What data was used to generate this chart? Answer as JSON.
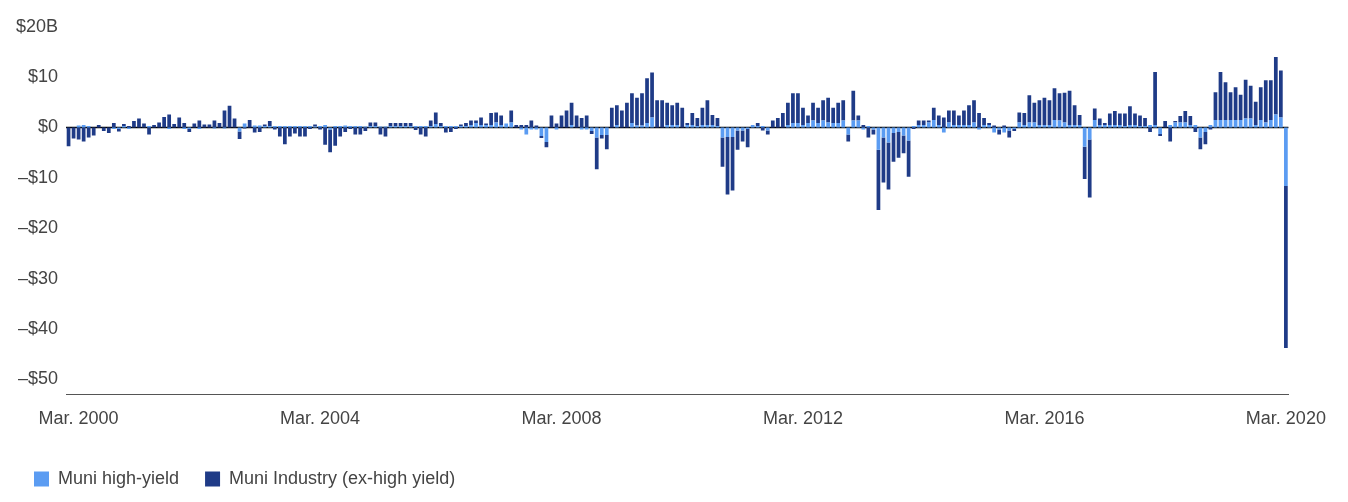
{
  "chart_data": {
    "type": "bar",
    "stacked": true,
    "grid": false,
    "legend": "bottom left",
    "ylim": [
      -53,
      20
    ],
    "yticks": [
      {
        "value": -50,
        "label": "–$50"
      },
      {
        "value": -40,
        "label": "–$40"
      },
      {
        "value": -30,
        "label": "–$30"
      },
      {
        "value": -20,
        "label": "–$20"
      },
      {
        "value": -10,
        "label": "–$10"
      },
      {
        "value": 0,
        "label": "$0"
      },
      {
        "value": 10,
        "label": "$10"
      },
      {
        "value": 20,
        "label": "$20B"
      }
    ],
    "ref_lines": [
      {
        "axis": "y",
        "value": 0,
        "color": "#000000"
      }
    ],
    "categories": [
      null,
      null,
      "Mar. 2000",
      null,
      null,
      null,
      null,
      null,
      null,
      null,
      null,
      null,
      null,
      null,
      null,
      null,
      null,
      null,
      null,
      null,
      null,
      null,
      null,
      null,
      null,
      null,
      null,
      null,
      null,
      null,
      null,
      null,
      null,
      null,
      null,
      null,
      null,
      null,
      null,
      null,
      null,
      null,
      null,
      null,
      null,
      null,
      null,
      null,
      null,
      null,
      "Mar. 2004",
      null,
      null,
      null,
      null,
      null,
      null,
      null,
      null,
      null,
      null,
      null,
      null,
      null,
      null,
      null,
      null,
      null,
      null,
      null,
      null,
      null,
      null,
      null,
      null,
      null,
      null,
      null,
      null,
      null,
      null,
      null,
      null,
      null,
      null,
      null,
      null,
      null,
      null,
      null,
      null,
      null,
      null,
      null,
      null,
      null,
      null,
      null,
      "Mar. 2008",
      null,
      null,
      null,
      null,
      null,
      null,
      null,
      null,
      null,
      null,
      null,
      null,
      null,
      null,
      null,
      null,
      null,
      null,
      null,
      null,
      null,
      null,
      null,
      null,
      null,
      null,
      null,
      null,
      null,
      null,
      null,
      null,
      null,
      null,
      null,
      null,
      null,
      null,
      null,
      null,
      null,
      null,
      null,
      null,
      null,
      null,
      null,
      "Mar. 2012",
      null,
      null,
      null,
      null,
      null,
      null,
      null,
      null,
      null,
      null,
      null,
      null,
      null,
      null,
      null,
      null,
      null,
      null,
      null,
      null,
      null,
      null,
      null,
      null,
      null,
      null,
      null,
      null,
      null,
      null,
      null,
      null,
      null,
      null,
      null,
      null,
      null,
      null,
      null,
      null,
      null,
      null,
      null,
      null,
      null,
      null,
      null,
      "Mar. 2016",
      null,
      null,
      null,
      null,
      null,
      null,
      null,
      null,
      null,
      null,
      null,
      null,
      null,
      null,
      null,
      null,
      null,
      null,
      null,
      null,
      null,
      null,
      null,
      null,
      null,
      null,
      null,
      null,
      null,
      null,
      null,
      null,
      null,
      null,
      null,
      null,
      null,
      null,
      null,
      null,
      null,
      null,
      null,
      null,
      null,
      null,
      null,
      "Mar. 2020"
    ],
    "series": [
      {
        "name": "Muni high-yield",
        "color": "#5b9cf2",
        "values": [
          0,
          0,
          0.4,
          0.5,
          0.3,
          0,
          0,
          null,
          0,
          -0.3,
          -0.3,
          0.3,
          -0.3,
          0,
          0,
          0,
          0.3,
          0,
          0,
          0,
          -0.3,
          0,
          0,
          -0.3,
          -0.3,
          0,
          -0.3,
          0,
          0,
          -0.2,
          0,
          -0.2,
          0,
          0,
          -0.8,
          0.8,
          0,
          0.4,
          0.4,
          0.3,
          0.3,
          0.3,
          0.3,
          0.3,
          0.3,
          0.3,
          0.3,
          0.3,
          0.3,
          0.2,
          0.3,
          0.5,
          -0.4,
          0.3,
          0.3,
          0.4,
          0.3,
          0.3,
          0.3,
          0.2,
          0.3,
          0.3,
          0.2,
          0.2,
          0.3,
          0.3,
          0.3,
          0.3,
          0.3,
          0.3,
          0.3,
          0.3,
          0.3,
          0.7,
          0.3,
          0.3,
          0.3,
          0.3,
          0.3,
          0.3,
          0.5,
          0.9,
          0.5,
          0.5,
          0.5,
          1.0,
          0.5,
          0.8,
          1.0,
          0,
          -0.4,
          -1.4,
          -0.4,
          -0.4,
          -1.7,
          -2.9,
          0,
          -0.4,
          0,
          0,
          0.5,
          0,
          -0.4,
          -0.4,
          -0.7,
          -2.0,
          -1.5,
          -1.5,
          0,
          0.5,
          0,
          0,
          0.9,
          0.4,
          0.4,
          0.9,
          2.0,
          0,
          0,
          0.5,
          0.5,
          0.5,
          0,
          0.5,
          0.5,
          0.3,
          0.5,
          0.5,
          0.5,
          0.3,
          -2.0,
          -1.9,
          -1.9,
          -0.6,
          -0.6,
          -0.3,
          0.5,
          0.3,
          0.3,
          -0.6,
          0,
          0,
          0,
          0.5,
          0.9,
          0.9,
          0.5,
          0.9,
          1.4,
          0.9,
          1.4,
          1.0,
          0.9,
          0.9,
          1.4,
          -1.4,
          1.4,
          1.4,
          -0.4,
          0.3,
          -0.4,
          -4.4,
          -2.0,
          -3.0,
          -1.1,
          -0.9,
          -1.6,
          -2.6,
          0.3,
          0.5,
          0.5,
          1.0,
          1.5,
          0.5,
          -1.0,
          1.0,
          0.5,
          0.5,
          0.5,
          0.5,
          1.0,
          -0.4,
          0.5,
          0.5,
          -1.0,
          -0.4,
          -1.0,
          -0.6,
          -0.3,
          1.0,
          0.5,
          1.0,
          1.0,
          0.5,
          0.5,
          0.5,
          1.5,
          1.4,
          1.0,
          0.5,
          0.5,
          0.5,
          -3.8,
          -2.4,
          1.5,
          0.5,
          0.5,
          0.5,
          0.5,
          0.5,
          0.3,
          0.5,
          0.5,
          0.3,
          0.3,
          0.5,
          0.5,
          -1.3,
          0,
          0.5,
          1.0,
          1.0,
          1.0,
          0.5,
          0.5,
          -2.0,
          -0.9,
          0.5,
          1.5,
          1.5,
          1.5,
          1.5,
          1.5,
          1.5,
          1.8,
          1.8,
          0.5,
          1.5,
          1.0,
          1.5,
          2.6,
          2.0,
          -11.6
        ]
      },
      {
        "name": "Muni Industry (ex-high yield)",
        "color": "#1f3b87",
        "values": [
          -3.7,
          -2.2,
          -2.4,
          -2.8,
          -2.0,
          -1.6,
          0.5,
          -0.7,
          -1.1,
          0.9,
          -0.5,
          0.4,
          0.3,
          1.3,
          1.8,
          0.8,
          -1.4,
          0.5,
          1.0,
          2.1,
          2.6,
          0.7,
          2.0,
          0.9,
          -0.6,
          0.8,
          1.4,
          0.6,
          0.6,
          1.4,
          0.9,
          3.4,
          4.3,
          1.8,
          -1.5,
          -0.2,
          1.5,
          -1.0,
          -0.9,
          0.3,
          1.0,
          -0.4,
          -1.8,
          -3.3,
          -1.8,
          -1.2,
          -1.8,
          -1.8,
          -0.3,
          0.4,
          -0.4,
          -3.4,
          -4.5,
          -3.6,
          -1.8,
          -0.9,
          -0.3,
          -1.4,
          -1.4,
          -0.7,
          0.7,
          0.7,
          -1.4,
          -1.8,
          0.6,
          0.6,
          0.6,
          0.6,
          0.6,
          -0.5,
          -1.4,
          -1.8,
          1.1,
          2.3,
          0.6,
          -1.0,
          -0.9,
          -0.3,
          0.3,
          0.6,
          0.9,
          0.5,
          1.5,
          0.3,
          2.4,
          2.0,
          1.9,
          null,
          2.4,
          0.5,
          0.5,
          0.5,
          1.4,
          0.4,
          -0.4,
          -1.0,
          2.4,
          0.8,
          2.4,
          3.4,
          4.4,
          2.4,
          1.9,
          2.4,
          -0.6,
          -6.3,
          -0.7,
          -2.8,
          3.9,
          3.9,
          3.4,
          4.9,
          5.9,
          5.5,
          6.4,
          8.9,
          8.9,
          5.4,
          5.4,
          4.4,
          3.9,
          4.4,
          3.9,
          0.4,
          2.4,
          1.6,
          3.4,
          4.9,
          2.0,
          1.6,
          -5.8,
          -11.4,
          -10.6,
          -3.8,
          -2.2,
          -3.6,
          0,
          0.6,
          -0.6,
          -0.8,
          1.4,
          1.9,
          2.9,
          4.4,
          5.9,
          5.9,
          3.4,
          1.5,
          3.5,
          3.0,
          4.0,
          4.9,
          3.0,
          4.0,
          4.0,
          -1.4,
          5.9,
          1.0,
          0.5,
          -2.0,
          -1.0,
          -12.0,
          -8.9,
          -9.3,
          -5.7,
          -5.1,
          -3.5,
          -7.2,
          -0.3,
          0.9,
          0.9,
          0.4,
          2.4,
          1.9,
          2.0,
          2.4,
          2.9,
          1.9,
          2.9,
          3.9,
          4.4,
          2.9,
          1.4,
          0.4,
          0.4,
          -1.0,
          0.4,
          -1.4,
          -0.4,
          2.0,
          2.4,
          5.4,
          3.9,
          4.9,
          5.4,
          4.9,
          6.3,
          5.4,
          5.9,
          6.8,
          3.9,
          2.0,
          -6.4,
          -11.5,
          2.3,
          1.3,
          0.4,
          2.3,
          2.8,
          2.3,
          2.5,
          3.7,
          2.3,
          2.1,
          1.6,
          -0.9,
          10.5,
          -0.4,
          1.3,
          -2.8,
          0.3,
          1.3,
          2.3,
          1.8,
          -0.9,
          -2.3,
          -2.4,
          -0.4,
          5.5,
          9.5,
          7.5,
          5.5,
          6.5,
          5.0,
          7.7,
          6.5,
          4.6,
          6.5,
          8.4,
          7.9,
          11.4,
          9.3,
          -32.2
        ]
      }
    ]
  }
}
